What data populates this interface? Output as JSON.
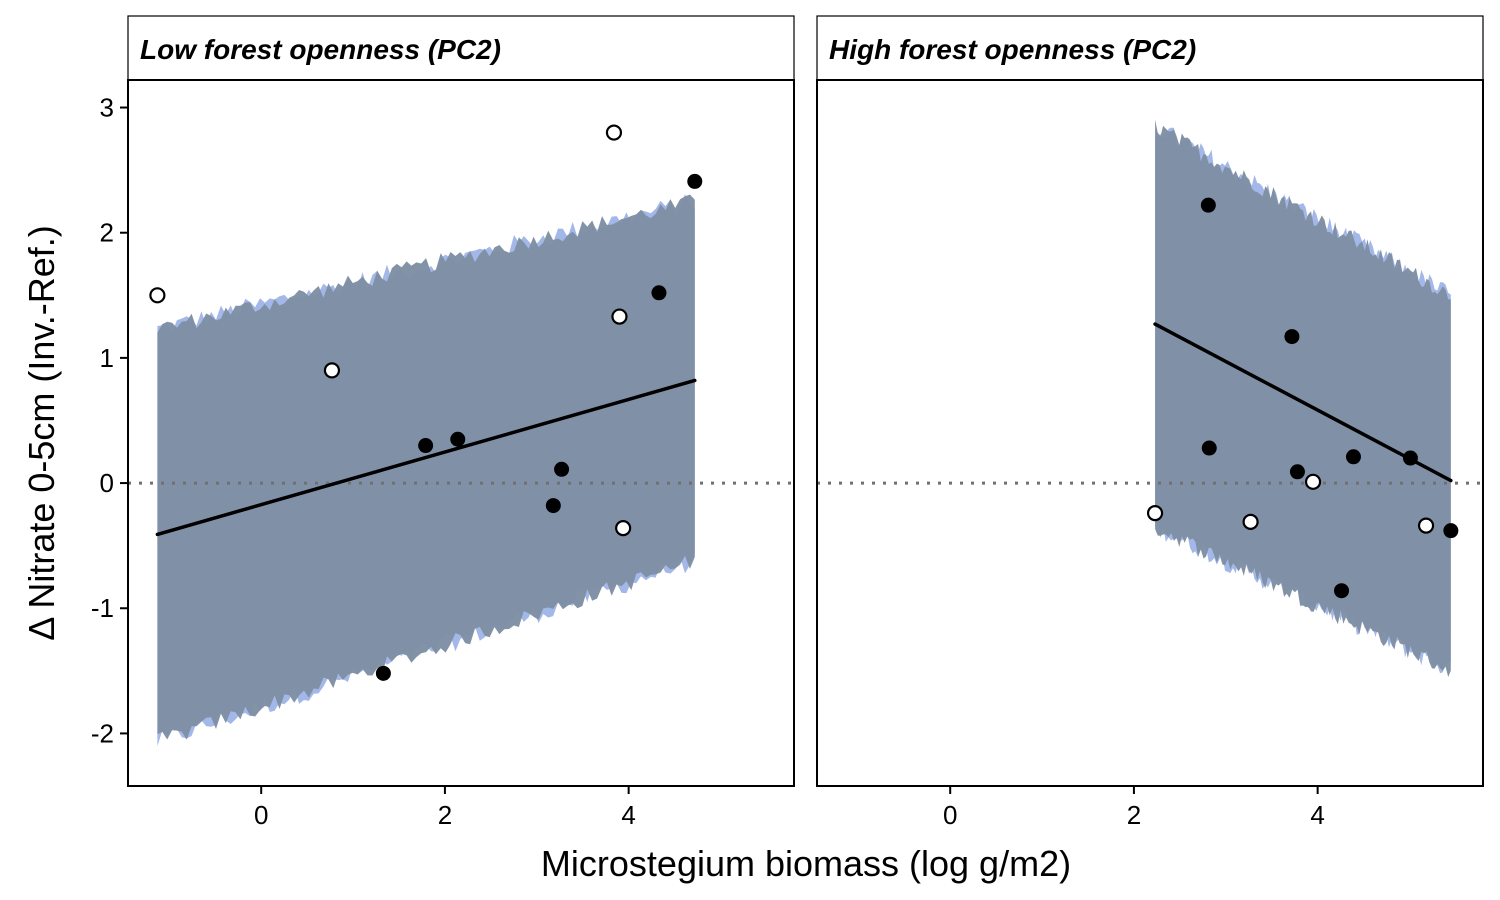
{
  "chart_data": {
    "type": "scatter",
    "xlabel": "Microstegium biomass (log g/m2)",
    "ylabel": "Δ Nitrate 0-5cm (Inv.-Ref.)",
    "xlim": [
      -1.45,
      5.8
    ],
    "ylim": [
      -2.42,
      3.22
    ],
    "x_ticks": [
      0,
      2,
      4
    ],
    "y_ticks": [
      -2,
      -1,
      0,
      1,
      2,
      3
    ],
    "reference_line": {
      "y": 0,
      "style": "dotted",
      "color": "#707070"
    },
    "grid": false,
    "colors": {
      "band_blue": "#a3b8e8",
      "band_grey": "#7f8fa4",
      "line": "#000000",
      "point": "#000000"
    },
    "panels": [
      {
        "title": "Low forest openness (PC2)",
        "band": {
          "x": [
            -1.13,
            4.72
          ],
          "lower": [
            -2.07,
            -0.62
          ],
          "upper": [
            1.23,
            2.25
          ]
        },
        "fit_line": {
          "x": [
            -1.13,
            4.72
          ],
          "y": [
            -0.41,
            0.82
          ]
        },
        "points_filled": [
          [
            1.33,
            -1.52
          ],
          [
            1.79,
            0.3
          ],
          [
            2.14,
            0.35
          ],
          [
            3.18,
            -0.18
          ],
          [
            3.27,
            0.11
          ],
          [
            4.33,
            1.52
          ],
          [
            4.72,
            2.41
          ]
        ],
        "points_open": [
          [
            -1.13,
            1.5
          ],
          [
            0.77,
            0.9
          ],
          [
            3.84,
            2.8
          ],
          [
            3.9,
            1.33
          ],
          [
            3.94,
            -0.36
          ]
        ]
      },
      {
        "title": "High forest openness (PC2)",
        "band": {
          "x": [
            2.23,
            5.45
          ],
          "lower": [
            -0.35,
            -1.5
          ],
          "upper": [
            2.85,
            1.5
          ]
        },
        "fit_line": {
          "x": [
            2.23,
            5.45
          ],
          "y": [
            1.27,
            0.02
          ]
        },
        "points_filled": [
          [
            2.81,
            2.22
          ],
          [
            2.82,
            0.28
          ],
          [
            3.72,
            1.17
          ],
          [
            3.78,
            0.09
          ],
          [
            4.26,
            -0.86
          ],
          [
            4.39,
            0.21
          ],
          [
            5.01,
            0.2
          ],
          [
            5.45,
            -0.38
          ]
        ],
        "points_open": [
          [
            2.23,
            -0.24
          ],
          [
            3.27,
            -0.31
          ],
          [
            3.95,
            0.01
          ],
          [
            5.18,
            -0.34
          ]
        ]
      }
    ]
  }
}
